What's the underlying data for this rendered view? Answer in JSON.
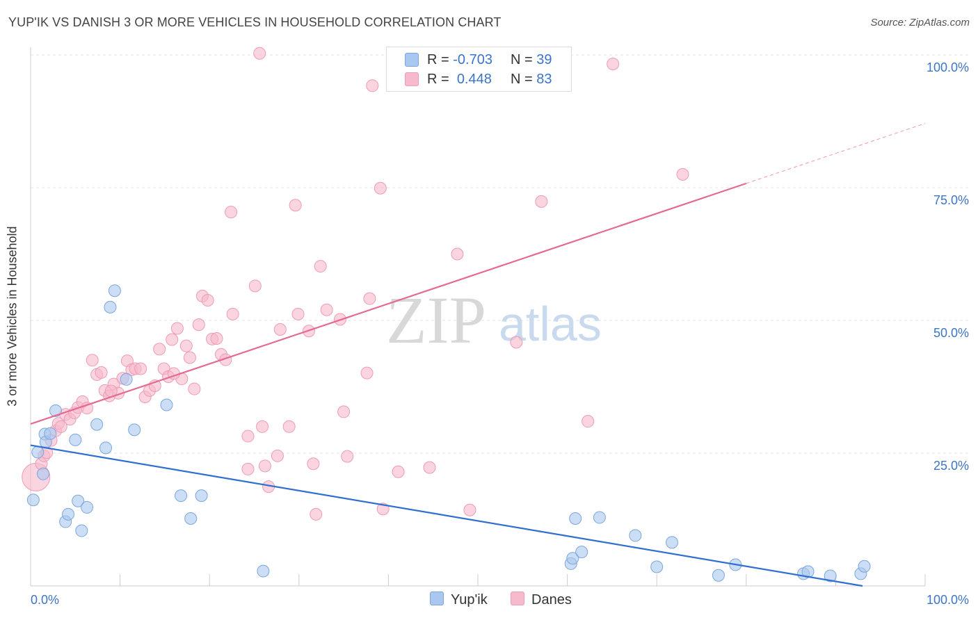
{
  "title": "YUP'IK VS DANISH 3 OR MORE VEHICLES IN HOUSEHOLD CORRELATION CHART",
  "source": "Source: ZipAtlas.com",
  "watermark": {
    "part1": "ZIP",
    "part2": "atlas"
  },
  "legend_top": [
    {
      "r_label": "R =",
      "r_value": "-0.703",
      "n_label": "N =",
      "n_value": "39",
      "color": "#aac8ef"
    },
    {
      "r_label": "R =",
      "r_value": "0.448",
      "n_label": "N =",
      "n_value": "83",
      "color": "#f7b9cc"
    }
  ],
  "legend_bottom": [
    {
      "label": "Yup'ik",
      "color": "#aac8ef"
    },
    {
      "label": "Danes",
      "color": "#f7b9cc"
    }
  ],
  "chart_data": {
    "type": "scatter",
    "title": "YUP'IK VS DANISH 3 OR MORE VEHICLES IN HOUSEHOLD CORRELATION CHART",
    "xlabel": "",
    "ylabel": "3 or more Vehicles in Household",
    "xlim": [
      0,
      100
    ],
    "ylim": [
      0,
      102
    ],
    "x_tick_labels": [
      "0.0%",
      "100.0%"
    ],
    "y_ticks": [
      25,
      50,
      75,
      100
    ],
    "y_tick_labels": [
      "25.0%",
      "50.0%",
      "75.0%",
      "100.0%"
    ],
    "grid": true,
    "legend_position": "top-center",
    "series": [
      {
        "name": "Yup'ik",
        "color": "#aac8ef",
        "stroke": "#7aa6dd",
        "trend_color": "#2f6fd0",
        "trend": {
          "x": [
            0,
            93
          ],
          "y": [
            26.5,
            0
          ]
        },
        "points": [
          [
            0.3,
            16.2
          ],
          [
            0.8,
            25.2
          ],
          [
            1.4,
            21.1
          ],
          [
            1.6,
            28.6
          ],
          [
            1.7,
            27.1
          ],
          [
            2.2,
            28.7
          ],
          [
            2.8,
            33.0
          ],
          [
            3.9,
            12.1
          ],
          [
            4.2,
            13.5
          ],
          [
            5.0,
            27.5
          ],
          [
            5.3,
            16.0
          ],
          [
            5.7,
            10.4
          ],
          [
            6.3,
            14.8
          ],
          [
            7.4,
            30.4
          ],
          [
            8.4,
            26.0
          ],
          [
            8.9,
            52.5
          ],
          [
            9.4,
            55.6
          ],
          [
            10.7,
            38.9
          ],
          [
            11.6,
            29.4
          ],
          [
            15.2,
            34.1
          ],
          [
            16.8,
            17.0
          ],
          [
            17.9,
            12.7
          ],
          [
            19.1,
            17.0
          ],
          [
            26.0,
            2.8
          ],
          [
            60.4,
            4.2
          ],
          [
            60.6,
            5.2
          ],
          [
            60.9,
            12.7
          ],
          [
            61.6,
            6.4
          ],
          [
            63.6,
            12.9
          ],
          [
            67.6,
            9.5
          ],
          [
            70.0,
            3.6
          ],
          [
            71.7,
            8.2
          ],
          [
            76.9,
            2.0
          ],
          [
            78.8,
            4.0
          ],
          [
            86.4,
            2.3
          ],
          [
            86.9,
            2.7
          ],
          [
            89.4,
            1.9
          ],
          [
            92.8,
            2.3
          ],
          [
            93.2,
            3.7
          ]
        ]
      },
      {
        "name": "Danes",
        "color": "#f7b9cc",
        "stroke": "#ee9bb5",
        "trend_color": "#e46a92",
        "trend": {
          "x": [
            0,
            80
          ],
          "y": [
            30.5,
            75.8
          ]
        },
        "trend_dashed": {
          "x": [
            80,
            100
          ],
          "y": [
            75.8,
            87.1
          ]
        },
        "points": [
          [
            0.6,
            20.5
          ],
          [
            1.2,
            23.0
          ],
          [
            1.5,
            24.5
          ],
          [
            1.8,
            25.1
          ],
          [
            2.3,
            27.4
          ],
          [
            2.8,
            29.2
          ],
          [
            3.1,
            30.6
          ],
          [
            3.9,
            32.3
          ],
          [
            4.4,
            31.4
          ],
          [
            4.9,
            32.6
          ],
          [
            5.3,
            33.6
          ],
          [
            5.8,
            34.7
          ],
          [
            6.3,
            33.5
          ],
          [
            6.9,
            42.5
          ],
          [
            7.4,
            39.8
          ],
          [
            7.9,
            40.2
          ],
          [
            8.3,
            36.8
          ],
          [
            8.8,
            35.8
          ],
          [
            9.3,
            38.0
          ],
          [
            9.8,
            36.3
          ],
          [
            10.3,
            39.1
          ],
          [
            10.8,
            42.4
          ],
          [
            11.3,
            40.7
          ],
          [
            11.7,
            40.9
          ],
          [
            12.3,
            40.9
          ],
          [
            12.8,
            35.6
          ],
          [
            13.3,
            36.8
          ],
          [
            13.9,
            37.7
          ],
          [
            14.4,
            44.6
          ],
          [
            14.9,
            40.9
          ],
          [
            15.4,
            39.4
          ],
          [
            15.8,
            46.4
          ],
          [
            16.4,
            48.5
          ],
          [
            16.9,
            39.0
          ],
          [
            17.4,
            45.2
          ],
          [
            17.8,
            43.0
          ],
          [
            18.3,
            37.1
          ],
          [
            18.8,
            49.2
          ],
          [
            19.2,
            54.6
          ],
          [
            19.8,
            53.8
          ],
          [
            20.3,
            46.5
          ],
          [
            20.8,
            46.6
          ],
          [
            21.3,
            43.6
          ],
          [
            21.8,
            42.6
          ],
          [
            22.4,
            70.4
          ],
          [
            22.6,
            51.2
          ],
          [
            24.3,
            28.2
          ],
          [
            24.3,
            22.0
          ],
          [
            25.1,
            56.5
          ],
          [
            25.6,
            100.3
          ],
          [
            25.9,
            30.0
          ],
          [
            26.2,
            22.6
          ],
          [
            26.6,
            18.7
          ],
          [
            27.6,
            24.5
          ],
          [
            27.9,
            48.3
          ],
          [
            28.9,
            30.0
          ],
          [
            29.6,
            71.7
          ],
          [
            29.9,
            51.2
          ],
          [
            31.1,
            48.0
          ],
          [
            31.6,
            23.0
          ],
          [
            31.9,
            13.5
          ],
          [
            32.4,
            60.2
          ],
          [
            33.1,
            52.0
          ],
          [
            34.6,
            50.2
          ],
          [
            35.0,
            32.8
          ],
          [
            35.4,
            24.4
          ],
          [
            37.6,
            40.1
          ],
          [
            37.9,
            54.1
          ],
          [
            38.2,
            94.2
          ],
          [
            39.1,
            74.9
          ],
          [
            39.4,
            14.5
          ],
          [
            41.1,
            21.5
          ],
          [
            44.6,
            22.3
          ],
          [
            47.7,
            62.5
          ],
          [
            49.1,
            14.3
          ],
          [
            54.3,
            45.9
          ],
          [
            57.1,
            72.4
          ],
          [
            62.3,
            31.0
          ],
          [
            65.1,
            98.3
          ],
          [
            72.9,
            77.5
          ],
          [
            3.4,
            30.0
          ],
          [
            9.0,
            36.7
          ],
          [
            16.0,
            40.0
          ]
        ]
      }
    ]
  }
}
